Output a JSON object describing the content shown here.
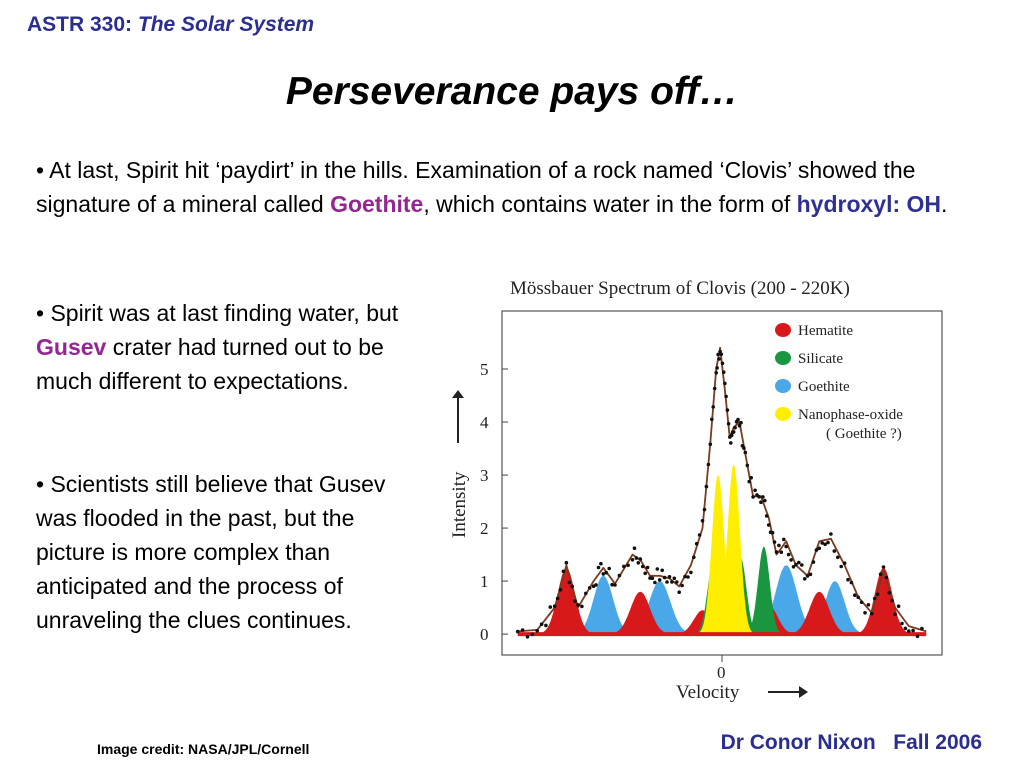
{
  "header": {
    "course_code": "ASTR 330:",
    "course_name": "The Solar System"
  },
  "title": "Perseverance pays off…",
  "bullets": [
    {
      "prefix": "• At last, Spirit hit ‘paydirt’ in the hills. Examination of a rock named ‘Clovis’ showed the signature of a mineral called ",
      "highlight1": "Goethite",
      "middle": ", which contains water in the form of ",
      "highlight2": "hydroxyl: OH",
      "suffix": "."
    },
    {
      "prefix": "• Spirit was at last finding water, but ",
      "highlight": "Gusev",
      "suffix": " crater had turned out to be much different to expectations."
    },
    {
      "text": "• Scientists still believe that Gusev was flooded in the past, but the picture is more complex than anticipated and the process of unraveling the clues continues."
    }
  ],
  "credit": "Image credit: NASA/JPL/Cornell",
  "footer": {
    "author": "Dr Conor Nixon",
    "term": "Fall 2006"
  },
  "colors": {
    "header_blue": "#2b2e91",
    "highlight_purple": "#93278f",
    "highlight_blue": "#2e3192",
    "hematite": "#d7191c",
    "silicate": "#1a9641",
    "goethite": "#4aa8e8",
    "nanophase": "#ffee00",
    "fit_line": "#7a3b1e"
  },
  "chart_data": {
    "type": "line",
    "title": "Mössbauer Spectrum of Clovis (200 - 220K)",
    "xlabel": "Velocity",
    "ylabel": "Intensity",
    "x_tick_labels": [
      "0"
    ],
    "y_ticks": [
      0,
      1,
      2,
      3,
      4,
      5
    ],
    "ylim": [
      -0.3,
      6.0
    ],
    "xlim": [
      -11,
      11
    ],
    "legend": {
      "placement": "top-right",
      "entries": [
        {
          "name": "Hematite",
          "color": "#d7191c"
        },
        {
          "name": "Silicate",
          "color": "#1a9641"
        },
        {
          "name": "Goethite",
          "color": "#4aa8e8"
        },
        {
          "name": "Nanophase-oxide",
          "note": "( Goethite ?)",
          "color": "#ffee00"
        }
      ]
    },
    "components": [
      {
        "name": "Hematite",
        "peaks": [
          {
            "center": -8.0,
            "height": 1.25,
            "width": 0.45
          },
          {
            "center": -4.2,
            "height": 0.8,
            "width": 0.5
          },
          {
            "center": -1.0,
            "height": 0.45,
            "width": 0.45
          },
          {
            "center": 2.4,
            "height": 0.55,
            "width": 0.45
          },
          {
            "center": 5.0,
            "height": 0.8,
            "width": 0.5
          },
          {
            "center": 8.3,
            "height": 1.25,
            "width": 0.45
          }
        ]
      },
      {
        "name": "Goethite",
        "peaks": [
          {
            "center": -6.1,
            "height": 1.1,
            "width": 0.5
          },
          {
            "center": -3.2,
            "height": 1.0,
            "width": 0.55
          },
          {
            "center": 3.3,
            "height": 1.3,
            "width": 0.55
          },
          {
            "center": 5.8,
            "height": 1.0,
            "width": 0.5
          }
        ]
      },
      {
        "name": "Silicate",
        "peaks": [
          {
            "center": -0.45,
            "height": 1.35,
            "width": 0.3
          },
          {
            "center": 0.95,
            "height": 1.45,
            "width": 0.3
          },
          {
            "center": 2.15,
            "height": 1.65,
            "width": 0.3
          }
        ]
      },
      {
        "name": "Nanophase-oxide",
        "peaks": [
          {
            "center": -0.2,
            "height": 3.0,
            "width": 0.32
          },
          {
            "center": 0.6,
            "height": 3.2,
            "width": 0.32
          }
        ]
      }
    ],
    "fit_line": {
      "x": [
        -10.5,
        -9.5,
        -8.6,
        -8.0,
        -7.4,
        -6.6,
        -6.1,
        -5.5,
        -4.6,
        -4.2,
        -3.7,
        -3.2,
        -2.7,
        -2.2,
        -1.6,
        -1.0,
        -0.6,
        -0.3,
        -0.1,
        0.15,
        0.4,
        0.6,
        0.9,
        1.2,
        1.6,
        2.0,
        2.4,
        2.8,
        3.3,
        3.8,
        4.4,
        5.0,
        5.6,
        6.3,
        7.0,
        7.7,
        8.3,
        8.9,
        9.6,
        10.5
      ],
      "y": [
        0.05,
        0.08,
        0.5,
        1.3,
        0.5,
        1.0,
        1.25,
        0.95,
        1.5,
        1.4,
        1.1,
        1.1,
        1.05,
        0.9,
        1.3,
        2.0,
        3.6,
        5.0,
        5.4,
        4.6,
        3.7,
        3.9,
        4.0,
        3.4,
        2.6,
        2.6,
        2.2,
        1.5,
        1.75,
        1.3,
        1.1,
        1.75,
        1.8,
        1.3,
        0.7,
        0.4,
        1.2,
        0.5,
        0.15,
        0.05
      ]
    }
  }
}
